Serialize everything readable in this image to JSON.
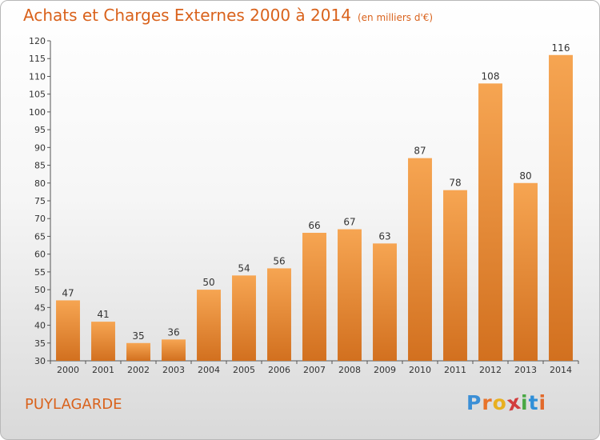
{
  "chart_data": {
    "type": "bar",
    "title": "Achats et Charges Externes 2000 à 2014",
    "subtitle": "(en milliers d'€)",
    "categories": [
      "2000",
      "2001",
      "2002",
      "2003",
      "2004",
      "2005",
      "2006",
      "2007",
      "2008",
      "2009",
      "2010",
      "2011",
      "2012",
      "2013",
      "2014"
    ],
    "values": [
      47,
      41,
      35,
      36,
      50,
      54,
      56,
      66,
      67,
      63,
      87,
      78,
      108,
      80,
      116
    ],
    "ylim": [
      30,
      120
    ],
    "yticks": [
      30,
      35,
      40,
      45,
      50,
      55,
      60,
      65,
      70,
      75,
      80,
      85,
      90,
      95,
      100,
      105,
      110,
      115,
      120
    ],
    "grid": false,
    "bar_color": "#f0913a"
  },
  "place_name": "PUYLAGARDE",
  "logo": {
    "letters": [
      "P",
      "r",
      "o",
      "x",
      "i",
      "t",
      "i"
    ],
    "colors": [
      "#3b8fd6",
      "#e8732a",
      "#e8b020",
      "#d23c3c",
      "#49a843",
      "#2f8fd8",
      "#e26a2c"
    ]
  }
}
